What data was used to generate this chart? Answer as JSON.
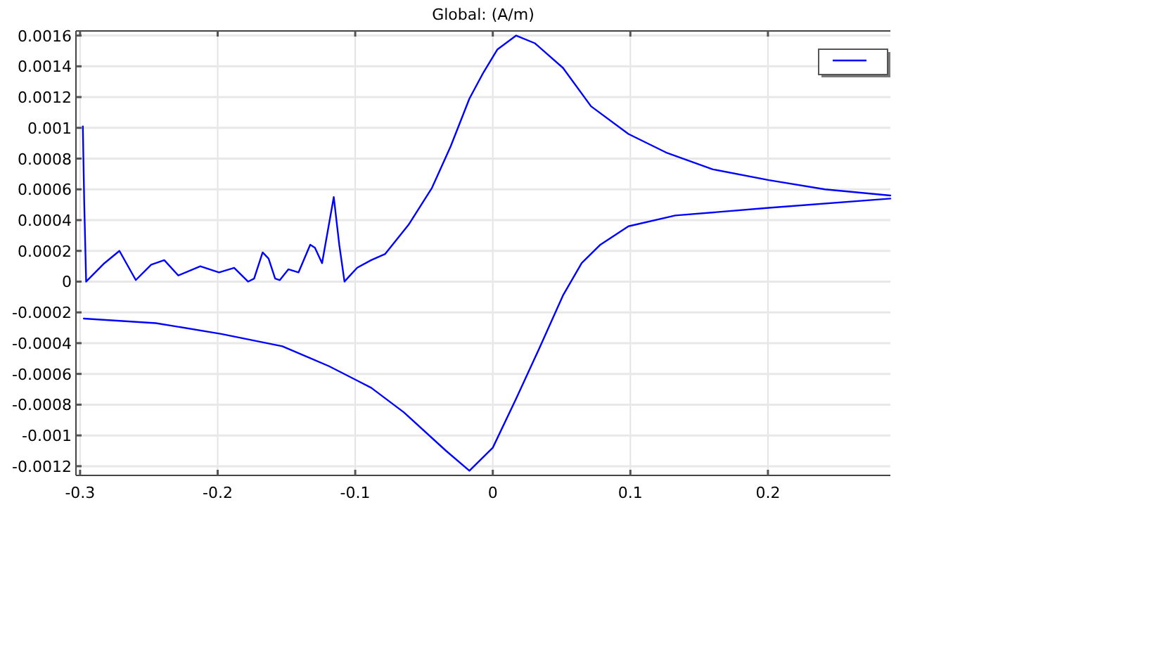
{
  "chart_data": {
    "type": "line",
    "title": "Global: (A/m)",
    "xlim": [
      -0.303,
      0.289
    ],
    "xticks": [
      -0.3,
      -0.2,
      -0.1,
      0,
      0.1,
      0.2
    ],
    "ylim": [
      -0.00126,
      0.00163
    ],
    "yticks": [
      -0.0012,
      -0.001,
      -0.0008,
      -0.0006,
      -0.0004,
      -0.0002,
      0,
      0.0002,
      0.0004,
      0.0006,
      0.0008,
      0.001,
      0.0012,
      0.0014,
      0.0016
    ],
    "grid": true,
    "marker": "none",
    "line_style": "solid",
    "series": [
      {
        "color": "#0000ff",
        "x": [
          -0.298,
          -0.297,
          -0.2956,
          -0.2823,
          -0.2714,
          -0.2595,
          -0.2483,
          -0.2388,
          -0.2286,
          -0.2126,
          -0.199,
          -0.188,
          -0.1779,
          -0.1735,
          -0.1673,
          -0.163,
          -0.1582,
          -0.1548,
          -0.1486,
          -0.1412,
          -0.1327,
          -0.1293,
          -0.1241,
          -0.1156,
          -0.1116,
          -0.1078,
          -0.1048,
          -0.0986,
          -0.0884,
          -0.0782,
          -0.0612,
          -0.0442,
          -0.0306,
          -0.017,
          -0.0068,
          0.0034,
          0.017,
          0.0306,
          0.051,
          0.0714,
          0.0986,
          0.1259,
          0.16,
          0.2007,
          0.2415,
          0.289
        ],
        "values": [
          0.00101,
          0.00052,
          0,
          0.00012,
          0.0002,
          1e-05,
          0.00011,
          0.00014,
          4e-05,
          0.0001,
          6e-05,
          9e-05,
          0,
          2e-05,
          0.00019,
          0.00015,
          2e-05,
          1e-05,
          8e-05,
          6e-05,
          0.00024,
          0.00022,
          0.00012,
          0.00055,
          0.00024,
          0,
          3e-05,
          9e-05,
          0.00014,
          0.00018,
          0.00037,
          0.00061,
          0.00088,
          0.00119,
          0.00136,
          0.00151,
          0.0016,
          0.00155,
          0.00139,
          0.00114,
          0.00096,
          0.00084,
          0.00073,
          0.00066,
          0.0006,
          0.00056
        ]
      },
      {
        "color": "#0000ff",
        "x": [
          0.289,
          0.2007,
          0.1327,
          0.0986,
          0.0782,
          0.0646,
          0.051,
          0.034,
          0.017,
          0,
          -0.017,
          -0.034,
          -0.0646,
          -0.0884,
          -0.119,
          -0.153,
          -0.1973,
          -0.2449,
          -0.2973
        ],
        "values": [
          0.00054,
          0.00048,
          0.00043,
          0.00036,
          0.00024,
          0.00012,
          -9e-05,
          -0.00043,
          -0.00076,
          -0.00108,
          -0.00123,
          -0.0011,
          -0.00085,
          -0.00069,
          -0.00055,
          -0.00042,
          -0.00034,
          -0.00027,
          -0.00024
        ]
      }
    ]
  }
}
